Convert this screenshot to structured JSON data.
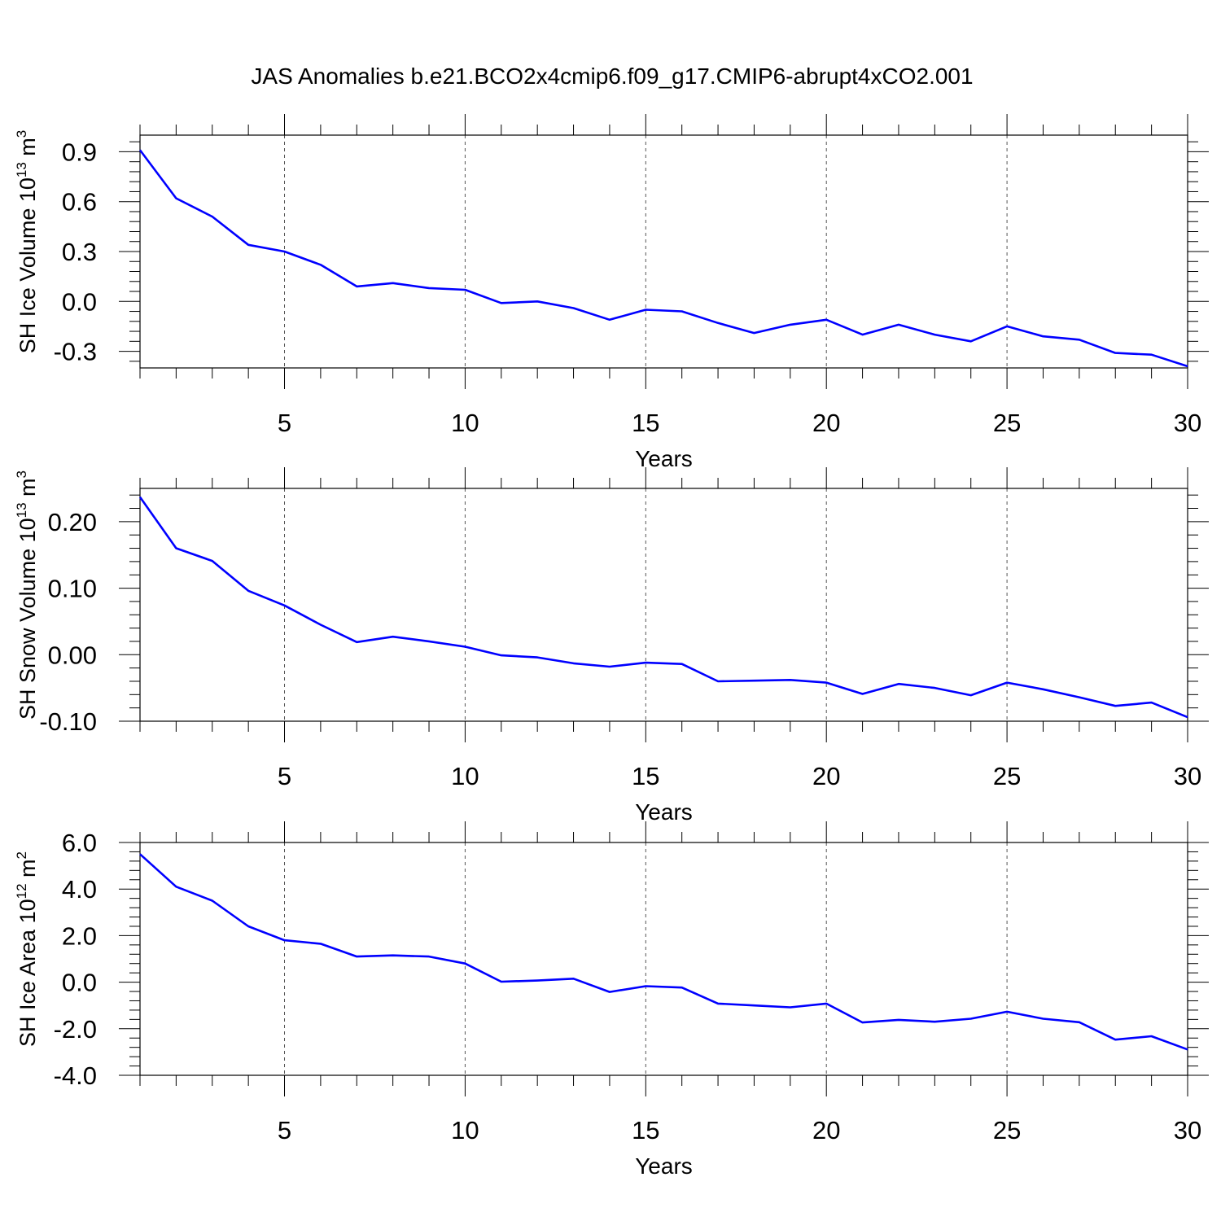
{
  "title": "JAS Anomalies b.e21.BCO2x4cmip6.f09_g17.CMIP6-abrupt4xCO2.001",
  "line_color": "#0000ff",
  "chart_data": [
    {
      "type": "line",
      "title": "JAS Anomalies b.e21.BCO2x4cmip6.f09_g17.CMIP6-abrupt4xCO2.001",
      "xlabel": "Years",
      "ylabel": "SH Ice Volume 10^13 m^3",
      "ylabel_parts": [
        {
          "text": "SH Ice Volume 10"
        },
        {
          "text": "13",
          "sup": true
        },
        {
          "text": " m"
        },
        {
          "text": "3",
          "sup": true
        }
      ],
      "xlim": [
        1,
        30
      ],
      "ylim": [
        -0.4,
        1.0
      ],
      "xticks": [
        5,
        10,
        15,
        20,
        25,
        30
      ],
      "yticks": [
        0.9,
        0.6,
        0.3,
        0.0,
        -0.3
      ],
      "ytick_labels": [
        "0.9",
        "0.6",
        "0.3",
        "0.0",
        "-0.3"
      ],
      "grid": "dashed vertical at major x ticks",
      "series": [
        {
          "x": [
            1,
            2,
            3,
            4,
            5,
            6,
            7,
            8,
            9,
            10,
            11,
            12,
            13,
            14,
            15,
            16,
            17,
            18,
            19,
            20,
            21,
            22,
            23,
            24,
            25,
            26,
            27,
            28,
            29,
            30
          ],
          "values": [
            0.91,
            0.62,
            0.51,
            0.34,
            0.3,
            0.22,
            0.09,
            0.11,
            0.08,
            0.07,
            -0.01,
            0.0,
            -0.04,
            -0.11,
            -0.05,
            -0.06,
            -0.13,
            -0.19,
            -0.14,
            -0.11,
            -0.2,
            -0.14,
            -0.2,
            -0.24,
            -0.15,
            -0.21,
            -0.23,
            -0.31,
            -0.32,
            -0.39
          ]
        }
      ]
    },
    {
      "type": "line",
      "xlabel": "Years",
      "ylabel": "SH Snow Volume 10^13 m^3",
      "ylabel_parts": [
        {
          "text": "SH Snow Volume 10"
        },
        {
          "text": "13",
          "sup": true
        },
        {
          "text": " m"
        },
        {
          "text": "3",
          "sup": true
        }
      ],
      "xlim": [
        1,
        30
      ],
      "ylim": [
        -0.1,
        0.25
      ],
      "xticks": [
        5,
        10,
        15,
        20,
        25,
        30
      ],
      "yticks": [
        0.2,
        0.1,
        0.0,
        -0.1
      ],
      "ytick_labels": [
        "0.20",
        "0.10",
        "0.00",
        "-0.10"
      ],
      "grid": "dashed vertical at major x ticks",
      "series": [
        {
          "x": [
            1,
            2,
            3,
            4,
            5,
            6,
            7,
            8,
            9,
            10,
            11,
            12,
            13,
            14,
            15,
            16,
            17,
            18,
            19,
            20,
            21,
            22,
            23,
            24,
            25,
            26,
            27,
            28,
            29,
            30
          ],
          "values": [
            0.237,
            0.16,
            0.141,
            0.096,
            0.074,
            0.045,
            0.019,
            0.027,
            0.02,
            0.012,
            -0.001,
            -0.004,
            -0.013,
            -0.018,
            -0.012,
            -0.014,
            -0.04,
            -0.039,
            -0.038,
            -0.042,
            -0.059,
            -0.044,
            -0.05,
            -0.061,
            -0.042,
            -0.052,
            -0.064,
            -0.077,
            -0.072,
            -0.094
          ]
        }
      ]
    },
    {
      "type": "line",
      "xlabel": "Years",
      "ylabel": "SH Ice Area 10^12 m^2",
      "ylabel_parts": [
        {
          "text": "SH Ice Area 10"
        },
        {
          "text": "12",
          "sup": true
        },
        {
          "text": " m"
        },
        {
          "text": "2",
          "sup": true
        }
      ],
      "xlim": [
        1,
        30
      ],
      "ylim": [
        -4.0,
        6.0
      ],
      "xticks": [
        5,
        10,
        15,
        20,
        25,
        30
      ],
      "yticks": [
        6.0,
        4.0,
        2.0,
        0.0,
        -2.0,
        -4.0
      ],
      "ytick_labels": [
        "6.0",
        "4.0",
        "2.0",
        "0.0",
        "-2.0",
        "-4.0"
      ],
      "grid": "dashed vertical at major x ticks",
      "series": [
        {
          "x": [
            1,
            2,
            3,
            4,
            5,
            6,
            7,
            8,
            9,
            10,
            11,
            12,
            13,
            14,
            15,
            16,
            17,
            18,
            19,
            20,
            21,
            22,
            23,
            24,
            25,
            26,
            27,
            28,
            29,
            30
          ],
          "values": [
            5.5,
            4.1,
            3.5,
            2.4,
            1.8,
            1.65,
            1.1,
            1.15,
            1.1,
            0.8,
            0.02,
            0.07,
            0.15,
            -0.42,
            -0.17,
            -0.23,
            -0.92,
            -1.0,
            -1.08,
            -0.92,
            -1.73,
            -1.62,
            -1.7,
            -1.57,
            -1.27,
            -1.57,
            -1.72,
            -2.47,
            -2.32,
            -2.89
          ]
        }
      ]
    }
  ]
}
